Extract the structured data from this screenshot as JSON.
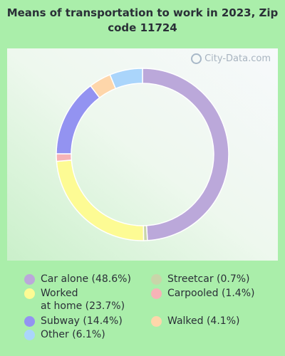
{
  "chart_data": {
    "type": "pie",
    "title": "Means of transportation to work in 2023, Zip code 11724",
    "donut": true,
    "slices": [
      {
        "label": "Car alone (48.6%)",
        "value": 48.6,
        "color": "#bba8da"
      },
      {
        "label": "Streetcar (0.7%)",
        "value": 0.7,
        "color": "#c9d5a9"
      },
      {
        "label": "Worked\nat home (23.7%)",
        "value": 23.7,
        "color": "#fdfb94"
      },
      {
        "label": "Carpooled (1.4%)",
        "value": 1.4,
        "color": "#f6b3b7"
      },
      {
        "label": "Subway (14.4%)",
        "value": 14.4,
        "color": "#9393f1"
      },
      {
        "label": "Walked (4.1%)",
        "value": 4.1,
        "color": "#fed6aa"
      },
      {
        "label": "Other (6.1%)",
        "value": 6.1,
        "color": "#aad5fb"
      }
    ],
    "legend_placement": "bottom"
  },
  "watermark": "City-Data.com",
  "watermark_icon": "magnifier-icon"
}
